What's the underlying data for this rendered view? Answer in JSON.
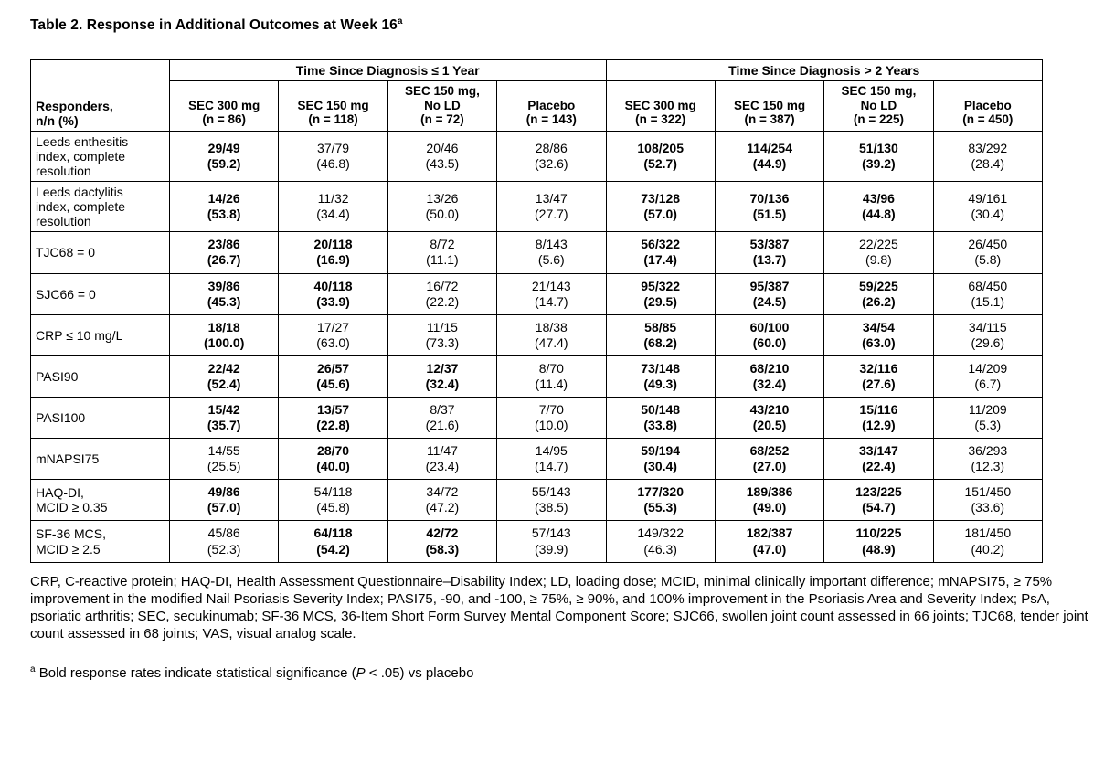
{
  "title": {
    "text": "Table 2. Response in Additional Outcomes at Week 16",
    "superscript": "a"
  },
  "table": {
    "row_header": "Responders,\nn/n (%)",
    "group_headers": [
      "Time Since Diagnosis ≤ 1 Year",
      "Time Since Diagnosis > 2 Years"
    ],
    "columns": [
      {
        "lines": [
          "SEC 300 mg"
        ],
        "n": "(n = 86)"
      },
      {
        "lines": [
          "SEC 150 mg"
        ],
        "n": "(n = 118)"
      },
      {
        "lines": [
          "SEC 150 mg,",
          "No LD"
        ],
        "n": "(n = 72)"
      },
      {
        "lines": [
          "Placebo"
        ],
        "n": "(n = 143)"
      },
      {
        "lines": [
          "SEC 300 mg"
        ],
        "n": "(n = 322)"
      },
      {
        "lines": [
          "SEC 150 mg"
        ],
        "n": "(n = 387)"
      },
      {
        "lines": [
          "SEC 150 mg,",
          "No LD"
        ],
        "n": "(n = 225)"
      },
      {
        "lines": [
          "Placebo"
        ],
        "n": "(n = 450)"
      }
    ],
    "rows": [
      {
        "label": "Leeds enthesitis\nindex, complete\nresolution",
        "cells": [
          [
            "29/49",
            "(59.2)",
            1
          ],
          [
            "37/79",
            "(46.8)",
            0
          ],
          [
            "20/46",
            "(43.5)",
            0
          ],
          [
            "28/86",
            "(32.6)",
            0
          ],
          [
            "108/205",
            "(52.7)",
            1
          ],
          [
            "114/254",
            "(44.9)",
            1
          ],
          [
            "51/130",
            "(39.2)",
            1
          ],
          [
            "83/292",
            "(28.4)",
            0
          ]
        ]
      },
      {
        "label": "Leeds dactylitis\nindex, complete\nresolution",
        "cells": [
          [
            "14/26",
            "(53.8)",
            1
          ],
          [
            "11/32",
            "(34.4)",
            0
          ],
          [
            "13/26",
            "(50.0)",
            0
          ],
          [
            "13/47",
            "(27.7)",
            0
          ],
          [
            "73/128",
            "(57.0)",
            1
          ],
          [
            "70/136",
            "(51.5)",
            1
          ],
          [
            "43/96",
            "(44.8)",
            1
          ],
          [
            "49/161",
            "(30.4)",
            0
          ]
        ]
      },
      {
        "label": "TJC68 = 0",
        "cells": [
          [
            "23/86",
            "(26.7)",
            1
          ],
          [
            "20/118",
            "(16.9)",
            1
          ],
          [
            "8/72",
            "(11.1)",
            0
          ],
          [
            "8/143",
            "(5.6)",
            0
          ],
          [
            "56/322",
            "(17.4)",
            1
          ],
          [
            "53/387",
            "(13.7)",
            1
          ],
          [
            "22/225",
            "(9.8)",
            0
          ],
          [
            "26/450",
            "(5.8)",
            0
          ]
        ]
      },
      {
        "label": "SJC66 = 0",
        "cells": [
          [
            "39/86",
            "(45.3)",
            1
          ],
          [
            "40/118",
            "(33.9)",
            1
          ],
          [
            "16/72",
            "(22.2)",
            0
          ],
          [
            "21/143",
            "(14.7)",
            0
          ],
          [
            "95/322",
            "(29.5)",
            1
          ],
          [
            "95/387",
            "(24.5)",
            1
          ],
          [
            "59/225",
            "(26.2)",
            1
          ],
          [
            "68/450",
            "(15.1)",
            0
          ]
        ]
      },
      {
        "label": "CRP ≤ 10 mg/L",
        "cells": [
          [
            "18/18",
            "(100.0)",
            1
          ],
          [
            "17/27",
            "(63.0)",
            0
          ],
          [
            "11/15",
            "(73.3)",
            0
          ],
          [
            "18/38",
            "(47.4)",
            0
          ],
          [
            "58/85",
            "(68.2)",
            1
          ],
          [
            "60/100",
            "(60.0)",
            1
          ],
          [
            "34/54",
            "(63.0)",
            1
          ],
          [
            "34/115",
            "(29.6)",
            0
          ]
        ]
      },
      {
        "label": "PASI90",
        "cells": [
          [
            "22/42",
            "(52.4)",
            1
          ],
          [
            "26/57",
            "(45.6)",
            1
          ],
          [
            "12/37",
            "(32.4)",
            1
          ],
          [
            "8/70",
            "(11.4)",
            0
          ],
          [
            "73/148",
            "(49.3)",
            1
          ],
          [
            "68/210",
            "(32.4)",
            1
          ],
          [
            "32/116",
            "(27.6)",
            1
          ],
          [
            "14/209",
            "(6.7)",
            0
          ]
        ]
      },
      {
        "label": "PASI100",
        "cells": [
          [
            "15/42",
            "(35.7)",
            1
          ],
          [
            "13/57",
            "(22.8)",
            1
          ],
          [
            "8/37",
            "(21.6)",
            0
          ],
          [
            "7/70",
            "(10.0)",
            0
          ],
          [
            "50/148",
            "(33.8)",
            1
          ],
          [
            "43/210",
            "(20.5)",
            1
          ],
          [
            "15/116",
            "(12.9)",
            1
          ],
          [
            "11/209",
            "(5.3)",
            0
          ]
        ]
      },
      {
        "label": "mNAPSI75",
        "cells": [
          [
            "14/55",
            "(25.5)",
            0
          ],
          [
            "28/70",
            "(40.0)",
            1
          ],
          [
            "11/47",
            "(23.4)",
            0
          ],
          [
            "14/95",
            "(14.7)",
            0
          ],
          [
            "59/194",
            "(30.4)",
            1
          ],
          [
            "68/252",
            "(27.0)",
            1
          ],
          [
            "33/147",
            "(22.4)",
            1
          ],
          [
            "36/293",
            "(12.3)",
            0
          ]
        ]
      },
      {
        "label": "HAQ-DI,\nMCID ≥ 0.35",
        "cells": [
          [
            "49/86",
            "(57.0)",
            1
          ],
          [
            "54/118",
            "(45.8)",
            0
          ],
          [
            "34/72",
            "(47.2)",
            0
          ],
          [
            "55/143",
            "(38.5)",
            0
          ],
          [
            "177/320",
            "(55.3)",
            1
          ],
          [
            "189/386",
            "(49.0)",
            1
          ],
          [
            "123/225",
            "(54.7)",
            1
          ],
          [
            "151/450",
            "(33.6)",
            0
          ]
        ]
      },
      {
        "label": "SF-36 MCS,\nMCID ≥ 2.5",
        "cells": [
          [
            "45/86",
            "(52.3)",
            0
          ],
          [
            "64/118",
            "(54.2)",
            1
          ],
          [
            "42/72",
            "(58.3)",
            1
          ],
          [
            "57/143",
            "(39.9)",
            0
          ],
          [
            "149/322",
            "(46.3)",
            0
          ],
          [
            "182/387",
            "(47.0)",
            1
          ],
          [
            "110/225",
            "(48.9)",
            1
          ],
          [
            "181/450",
            "(40.2)",
            0
          ]
        ]
      }
    ]
  },
  "footnotes": {
    "abbreviations": "CRP, C-reactive protein; HAQ-DI, Health Assessment Questionnaire–Disability Index; LD, loading dose; MCID, minimal clinically important difference; mNAPSI75, ≥ 75% improvement in the modified Nail Psoriasis Severity Index; PASI75, -90, and -100, ≥ 75%, ≥ 90%, and 100% improvement in the Psoriasis Area and Severity Index; PsA, psoriatic arthritis; SEC, secukinumab; SF-36 MCS, 36-Item Short Form Survey Mental Component Score; SJC66, swollen joint count assessed in 66 joints; TJC68, tender joint count assessed in 68 joints; VAS, visual analog scale.",
    "significance": {
      "marker": "a",
      "before_p": " Bold response rates indicate statistical significance (",
      "italic_p": "P",
      "after_p": " < .05) vs placebo"
    }
  }
}
